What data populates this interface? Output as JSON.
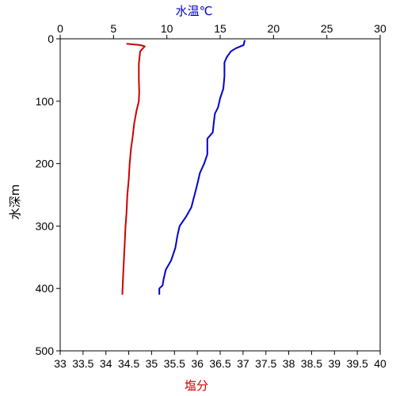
{
  "chart_data": {
    "type": "line",
    "top_axis": {
      "label": "水温℃",
      "label_color": "#0000cc",
      "range": [
        0,
        30
      ],
      "ticks": [
        "0",
        "5",
        "10",
        "15",
        "20",
        "25",
        "30"
      ]
    },
    "bottom_axis": {
      "label": "塩分",
      "label_color": "#cc0000",
      "range": [
        33,
        40
      ],
      "ticks": [
        "33",
        "33.5",
        "34",
        "34.5",
        "35",
        "35.5",
        "36",
        "36.5",
        "37",
        "37.5",
        "38",
        "38.5",
        "39",
        "39.5",
        "40"
      ]
    },
    "y_axis": {
      "label": "水深m",
      "range": [
        0,
        500
      ],
      "inverted": true,
      "ticks": [
        "0",
        "100",
        "200",
        "300",
        "400",
        "500"
      ]
    },
    "grid": false,
    "series": [
      {
        "axis": "top",
        "color": "#0000cc",
        "points": [
          [
            17.3,
            2
          ],
          [
            17.2,
            10
          ],
          [
            16.5,
            15
          ],
          [
            16.0,
            20
          ],
          [
            15.8,
            25
          ],
          [
            15.6,
            30
          ],
          [
            15.4,
            38
          ],
          [
            15.4,
            60
          ],
          [
            15.3,
            80
          ],
          [
            15.0,
            95
          ],
          [
            14.8,
            110
          ],
          [
            14.5,
            120
          ],
          [
            14.4,
            135
          ],
          [
            14.3,
            150
          ],
          [
            13.8,
            160
          ],
          [
            13.8,
            185
          ],
          [
            13.5,
            200
          ],
          [
            13.1,
            215
          ],
          [
            12.9,
            230
          ],
          [
            12.6,
            250
          ],
          [
            12.3,
            270
          ],
          [
            11.8,
            285
          ],
          [
            11.2,
            300
          ],
          [
            11.0,
            315
          ],
          [
            10.8,
            335
          ],
          [
            10.4,
            355
          ],
          [
            9.9,
            370
          ],
          [
            9.7,
            385
          ],
          [
            9.6,
            395
          ],
          [
            9.3,
            400
          ],
          [
            9.3,
            410
          ]
        ]
      },
      {
        "axis": "bottom",
        "color": "#cc0000",
        "points": [
          [
            34.45,
            8
          ],
          [
            34.75,
            10
          ],
          [
            34.85,
            12
          ],
          [
            34.75,
            20
          ],
          [
            34.72,
            40
          ],
          [
            34.72,
            65
          ],
          [
            34.73,
            85
          ],
          [
            34.72,
            100
          ],
          [
            34.67,
            115
          ],
          [
            34.62,
            135
          ],
          [
            34.58,
            160
          ],
          [
            34.55,
            175
          ],
          [
            34.52,
            200
          ],
          [
            34.5,
            225
          ],
          [
            34.47,
            250
          ],
          [
            34.45,
            280
          ],
          [
            34.43,
            300
          ],
          [
            34.41,
            330
          ],
          [
            34.39,
            360
          ],
          [
            34.37,
            390
          ],
          [
            34.36,
            410
          ]
        ]
      }
    ]
  }
}
